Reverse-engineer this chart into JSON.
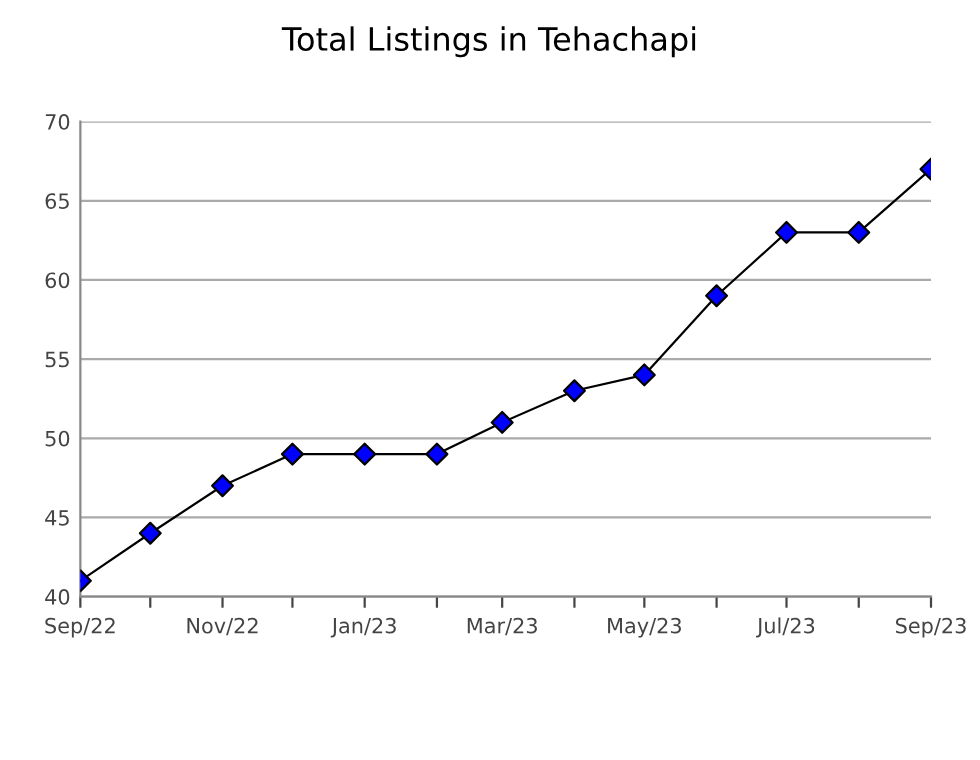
{
  "chart_data": {
    "type": "line",
    "title": "Total Listings in Tehachapi",
    "x": [
      "2022-09",
      "2022-10",
      "2022-11",
      "2022-12",
      "2023-01",
      "2023-02",
      "2023-03",
      "2023-04",
      "2023-05",
      "2023-06",
      "2023-07",
      "2023-08",
      "2023-09"
    ],
    "series": [
      {
        "color": "#000000",
        "colors": [
          "#0000ff",
          "#0000ff",
          "#0000ff",
          "#0000ff",
          "#0000ff",
          "#0000ff",
          "#0000ff",
          "#0000ff",
          "#0000ff",
          "#0000ff",
          "#0000ff",
          "#0000ff",
          "#0000ff"
        ],
        "values": [
          41,
          44,
          47,
          49,
          49,
          49,
          51,
          53,
          54,
          59,
          63,
          63,
          67
        ]
      }
    ],
    "xlim": [
      "2022-09",
      "2023-09"
    ],
    "xticks": [
      {
        "value": "2022-09",
        "label": "Sep/22"
      },
      {
        "value": "2022-10",
        "label": null
      },
      {
        "value": "2022-11",
        "label": "Nov/22"
      },
      {
        "value": "2022-12",
        "label": null
      },
      {
        "value": "2023-01",
        "label": "Jan/23"
      },
      {
        "value": "2023-02",
        "label": null
      },
      {
        "value": "2023-03",
        "label": "Mar/23"
      },
      {
        "value": "2023-04",
        "label": null
      },
      {
        "value": "2023-05",
        "label": "May/23"
      },
      {
        "value": "2023-06",
        "label": null
      },
      {
        "value": "2023-07",
        "label": "Jul/23"
      },
      {
        "value": "2023-08",
        "label": null
      },
      {
        "value": "2023-09",
        "label": "Sep/23"
      }
    ],
    "ylim": [
      40,
      70
    ],
    "yticks": [
      40,
      45,
      50,
      55,
      60,
      65,
      70
    ],
    "grid": "y",
    "marker": "diamond",
    "line_style": "solid"
  }
}
